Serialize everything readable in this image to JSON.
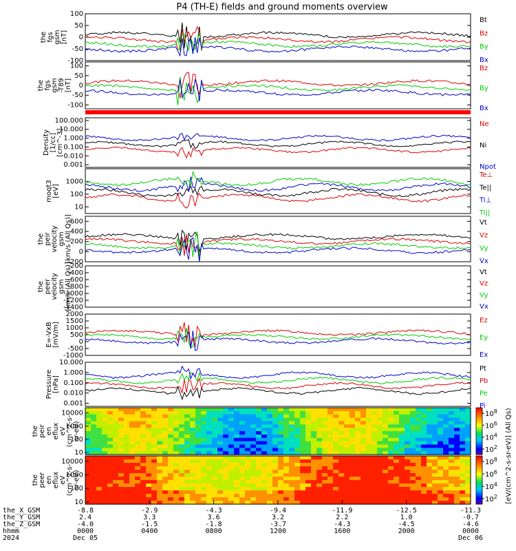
{
  "title": "P4 (TH-E) fields and ground moments overview",
  "chart_data": [
    {
      "panel": "fgs_gsm",
      "type": "line",
      "ylabel": [
        "the",
        "fgs",
        "gsm",
        "[nT]"
      ],
      "yticks": [
        "100",
        "50",
        "0",
        "-50",
        "-100"
      ],
      "ylim": [
        -100,
        100
      ],
      "legend": [
        "Bt",
        "Bz",
        "By",
        "Bx"
      ],
      "colors": [
        "#000000",
        "#dd0000",
        "#00cc00",
        "#0000cc"
      ]
    },
    {
      "panel": "fgs_gsm_t89",
      "type": "line",
      "ylabel": [
        "the",
        "fgs",
        "gsm",
        "-T89",
        "[nT]"
      ],
      "yticks": [
        "100",
        "50",
        "0",
        "-50",
        "-100"
      ],
      "ylim": [
        -120,
        120
      ],
      "legend": [
        "Bz",
        "By",
        "Bx"
      ],
      "colors": [
        "#dd0000",
        "#00cc00",
        "#0000cc"
      ]
    },
    {
      "panel": "density",
      "type": "line",
      "scale": "log",
      "ylabel": [
        "Density",
        "[1/cc]",
        "[cm^-3]"
      ],
      "yticks": [
        "100.000",
        "10.000",
        "1.000",
        "0.100",
        "0.010",
        "0.001"
      ],
      "ylim": [
        0.0005,
        200
      ],
      "legend": [
        "Ne",
        "Ni",
        "Npot"
      ],
      "colors": [
        "#dd0000",
        "#000000",
        "#0000cc"
      ]
    },
    {
      "panel": "temperature",
      "type": "line",
      "scale": "log",
      "ylabel": [
        "moqt3",
        "[eV]"
      ],
      "yticks": [
        "1000",
        "100",
        "10"
      ],
      "ylim": [
        3,
        10000
      ],
      "legend": [
        "Te⊥",
        "Te||",
        "Ti⊥",
        "Ti||"
      ],
      "colors": [
        "#dd0000",
        "#000000",
        "#0000cc",
        "#00cc00"
      ]
    },
    {
      "panel": "peir_velocity",
      "type": "line",
      "ylabel": [
        "the",
        "peir",
        "velocity",
        "gsm",
        "[km/s (All Qs)]"
      ],
      "yticks": [
        "600",
        "400",
        "200",
        "0",
        "-200"
      ],
      "ylim": [
        -200,
        700
      ],
      "legend": [
        "Vt",
        "Vz",
        "Vy",
        "Vx"
      ],
      "colors": [
        "#000000",
        "#dd0000",
        "#00cc00",
        "#0000cc"
      ]
    },
    {
      "panel": "peer_velocity",
      "type": "line",
      "ylabel": [
        "the",
        "peer",
        "velocity",
        "gsm",
        "[km/s (All Qs)]"
      ],
      "yticks": [
        "-200",
        "-400",
        "-600",
        "-800",
        "-1000",
        "-1200",
        "-1400"
      ],
      "ylim": [
        -1400,
        -200
      ],
      "legend": [
        "Vt",
        "Vz",
        "Vy",
        "Vx"
      ],
      "colors": [
        "#000000",
        "#dd0000",
        "#00cc00",
        "#0000cc"
      ]
    },
    {
      "panel": "efield",
      "type": "line",
      "ylabel": [
        "E=-VxB",
        "[mV/m]"
      ],
      "yticks": [
        "2000",
        "1500",
        "1000",
        "500",
        "0",
        "-500",
        "-1000"
      ],
      "ylim": [
        -1000,
        2000
      ],
      "legend": [
        "Ez",
        "Ey",
        "Ex"
      ],
      "colors": [
        "#dd0000",
        "#00cc00",
        "#0000cc"
      ]
    },
    {
      "panel": "pressure",
      "type": "line",
      "scale": "log",
      "ylabel": [
        "Pressure",
        "[nPa]"
      ],
      "yticks": [
        "10.000",
        "1.000",
        "0.100",
        "0.010",
        "0.001"
      ],
      "ylim": [
        0.0005,
        10
      ],
      "legend": [
        "Pt",
        "Pb",
        "Pe",
        "Pi"
      ],
      "colors": [
        "#000000",
        "#dd0000",
        "#00cc00",
        "#0000cc"
      ]
    },
    {
      "panel": "peir_spectrogram",
      "type": "heatmap",
      "ylabel": [
        "the",
        "peir",
        "en",
        "eflux",
        "eV",
        "(cm^2-s-",
        "sr-eV)"
      ],
      "yticks": [
        "10000",
        "1000",
        "100",
        "10"
      ],
      "ylim": [
        7,
        25000
      ]
    },
    {
      "panel": "peer_spectrogram",
      "type": "heatmap",
      "ylabel": [
        "the",
        "peer",
        "en",
        "eflux",
        "eV",
        "(cm^2-s-",
        "sr-eV)"
      ],
      "yticks": [
        "10000",
        "1000",
        "100",
        "10"
      ],
      "ylim": [
        7,
        25000
      ]
    }
  ],
  "colorbars": {
    "top_ticks": [
      "10^8",
      "10^6",
      "10^4",
      "10^2"
    ],
    "bottom_ticks": [
      "10^8",
      "10^6",
      "10^4",
      "10^2"
    ],
    "label": "[eV/(cm^2-s-sr-eV)] (All Qs)"
  },
  "x_axis": {
    "ephemeris": [
      {
        "name": "the_X_GSM",
        "values": [
          "-8.8",
          "-2.9",
          "-4.3",
          "-9.4",
          "-11.9",
          "-12.5",
          "-11.3"
        ]
      },
      {
        "name": "the_Y_GSM",
        "values": [
          "2.4",
          "3.3",
          "3.6",
          "3.2",
          "2.2",
          "1.0",
          "-0.7"
        ]
      },
      {
        "name": "the_Z_GSM",
        "values": [
          "-4.0",
          "-1.5",
          "-1.8",
          "-3.7",
          "-4.3",
          "-4.5",
          "-4.6"
        ]
      }
    ],
    "time_label": "hhmm",
    "times": [
      "0000",
      "0400",
      "0800",
      "1200",
      "1600",
      "2000",
      "0000"
    ],
    "year": "2024",
    "start_date": "Dec 05",
    "end_date": "Dec 06"
  }
}
